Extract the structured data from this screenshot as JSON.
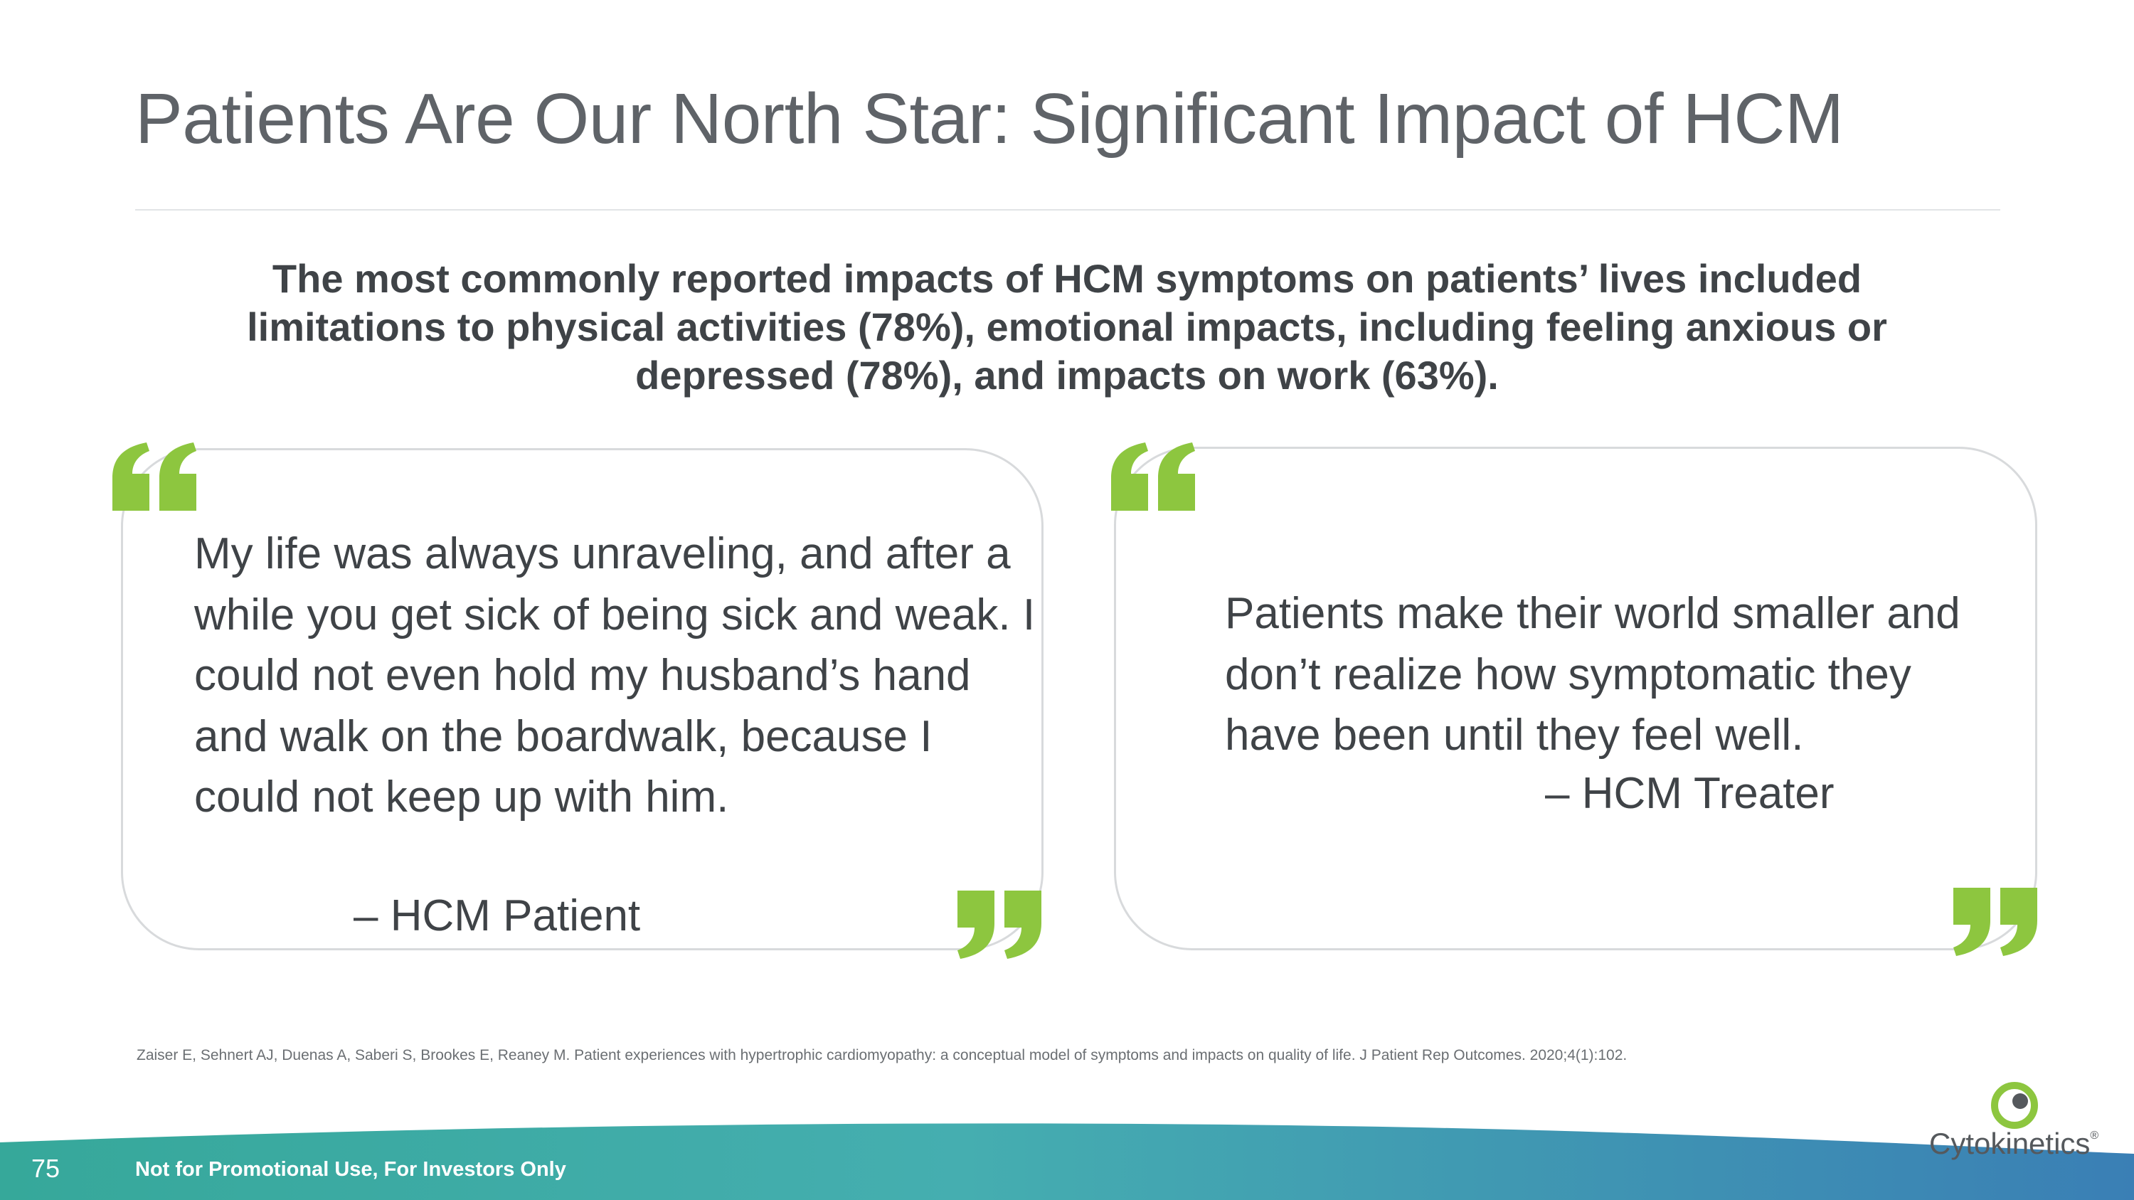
{
  "slide": {
    "title": "Patients Are Our North Star: Significant Impact of HCM",
    "subtitle": "The most commonly reported impacts of HCM symptoms on patients’ lives included limitations to physical activities (78%), emotional impacts, including feeling anxious or depressed (78%), and impacts on work (63%).",
    "page_number": "75",
    "footer_note": "Not for Promotional Use, For Investors Only",
    "citation": "Zaiser E, Sehnert AJ, Duenas A, Saberi S, Brookes E, Reaney M. Patient experiences with hypertrophic cardiomyopathy: a conceptual model of symptoms and impacts on quality of life. J Patient Rep Outcomes. 2020;4(1):102."
  },
  "quotes": [
    {
      "text": "My life was always unraveling, and after a while you get sick of being sick and weak. I could not even hold my husband’s hand and walk on the boardwalk, because I could not keep up with him.",
      "attribution": "– HCM Patient"
    },
    {
      "text": "Patients make their world smaller and don’t realize how symptomatic they have been until they feel well.",
      "attribution": "– HCM Treater"
    }
  ],
  "brand": {
    "name": "Cytokinetics",
    "trademark": "®",
    "accent_green": "#8dc63f",
    "footer_teal": "#3ba5a3",
    "footer_blue": "#3a7fb5"
  },
  "icons": [
    "open-quote-icon",
    "close-quote-icon",
    "cytokinetics-logo-icon"
  ]
}
